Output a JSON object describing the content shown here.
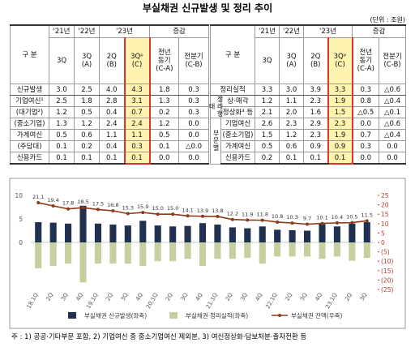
{
  "title": "부실채권 신규발생 및 정리 추이",
  "unit": "(단위 : 조원)",
  "left_table": {
    "corner": "구  분",
    "years": [
      "'21년",
      "'22년",
      "'23년"
    ],
    "change": "증감",
    "columns": [
      [
        "3Q"
      ],
      [
        "3Q",
        "(A)"
      ],
      [
        "2Q",
        "(B)"
      ],
      [
        "3Qᵖ",
        "(C)"
      ],
      [
        "전년",
        "동기",
        "(C-A)"
      ],
      [
        "전분기",
        "(C-B)"
      ]
    ],
    "rows": [
      [
        "신규발생",
        "3.0",
        "2.5",
        "4.0",
        "4.3",
        "1.8",
        "0.3"
      ],
      [
        "기업여신¹",
        "2.5",
        "1.8",
        "2.8",
        "3.1",
        "1.3",
        "0.3"
      ],
      [
        "(대기업²)",
        "1.2",
        "0.5",
        "0.4",
        "0.7",
        "0.2",
        "0.3"
      ],
      [
        "(중소기업)",
        "1.3",
        "1.2",
        "2.4",
        "2.4",
        "1.2",
        "0.0"
      ],
      [
        "가계여신",
        "0.5",
        "0.6",
        "1.1",
        "1.1",
        "0.5",
        "0.0"
      ],
      [
        "(주담대)",
        "0.1",
        "0.2",
        "0.4",
        "0.3",
        "0.1",
        "△0.0"
      ],
      [
        "신용카드",
        "0.1",
        "0.1",
        "0.1",
        "0.1",
        "0.0",
        "0.0"
      ]
    ]
  },
  "right_table": {
    "corner": "구  분",
    "years": [
      "'21년",
      "'22년",
      "'23년"
    ],
    "change": "증감",
    "columns": [
      [
        "3Q"
      ],
      [
        "3Q",
        "(A)"
      ],
      [
        "2Q",
        "(B)"
      ],
      [
        "3Qᵖ",
        "(C)"
      ],
      [
        "전년",
        "동기",
        "(C-A)"
      ],
      [
        "전분기",
        "(C-B)"
      ]
    ],
    "total": [
      "정리실적",
      "3.3",
      "3.0",
      "3.9",
      "3.3",
      "0.3",
      "△0.6"
    ],
    "groups": [
      {
        "label": "정리형태",
        "rows": [
          [
            "상·매각",
            "1.2",
            "1.1",
            "2.3",
            "1.9",
            "0.8",
            "△0.4"
          ],
          [
            "정상화³ 등",
            "2.1",
            "2.0",
            "1.6",
            "1.5",
            "△0.5",
            "△0.1"
          ]
        ]
      },
      {
        "label": "부문별",
        "rows": [
          [
            "기업여신",
            "2.6",
            "2.3",
            "2.9",
            "2.3",
            "0.0",
            "△0.6"
          ],
          [
            "(중소기업)",
            "1.5",
            "1.2",
            "2.3",
            "1.9",
            "0.7",
            "△0.4"
          ],
          [
            "가계여신",
            "0.5",
            "0.6",
            "0.9",
            "0.9",
            "0.3",
            "0.0"
          ],
          [
            "신용카드",
            "0.2",
            "0.1",
            "0.1",
            "0.1",
            "0.0",
            "0.0"
          ]
        ]
      }
    ]
  },
  "chart_data": {
    "type": "bar",
    "categories": [
      "18.1Q",
      "2Q",
      "3Q",
      "4Q",
      "19.1Q",
      "2Q",
      "3Q",
      "4Q",
      "20.1Q",
      "2Q",
      "3Q",
      "4Q",
      "21.1Q",
      "2Q",
      "3Q",
      "4Q",
      "22.1Q",
      "2Q",
      "3Q",
      "4Q",
      "23.1Q",
      "2Q",
      "3Q"
    ],
    "ylim": [
      -10,
      10
    ],
    "yticks": [
      10,
      5,
      0
    ],
    "y2lim": [
      -25,
      25
    ],
    "y2ticks": [
      25,
      20,
      15,
      10,
      5,
      0,
      {
        "value": -5,
        "label": "(5)"
      },
      {
        "value": -10,
        "label": "(10)"
      },
      {
        "value": -15,
        "label": "(15)"
      },
      {
        "value": -20,
        "label": "(20)"
      },
      {
        "value": -25,
        "label": "(25)"
      }
    ],
    "y2color": "#c0392b",
    "series": [
      {
        "name": "부실채권 신규발생(좌축)",
        "type": "bar",
        "color": "#1f3050",
        "values": [
          4.3,
          4.2,
          4.0,
          7.8,
          4.0,
          3.8,
          3.6,
          4.6,
          3.6,
          3.4,
          3.5,
          4.1,
          3.8,
          3.2,
          3.0,
          3.4,
          2.7,
          2.6,
          2.5,
          3.9,
          3.4,
          4.0,
          4.3
        ]
      },
      {
        "name": "부실채권 정리실적(좌축)",
        "type": "bar",
        "color": "#c6cf9f",
        "values": [
          -5.5,
          -5.0,
          -4.5,
          -8.5,
          -4.5,
          -4.5,
          -4.5,
          -5.0,
          -4.0,
          -4.0,
          -3.5,
          -5.0,
          -3.5,
          -3.5,
          -3.3,
          -4.5,
          -3.0,
          -3.0,
          -3.0,
          -3.5,
          -3.0,
          -3.9,
          -3.3
        ]
      },
      {
        "name": "부실채권 잔액(우축)",
        "type": "line",
        "axis": "y2",
        "color": "#8b3a1a",
        "values": [
          21.1,
          19.4,
          17.8,
          18.5,
          17.5,
          16.8,
          15.3,
          15.9,
          15.0,
          15.0,
          14.1,
          13.9,
          13.8,
          12.2,
          11.9,
          11.8,
          10.8,
          10.3,
          9.7,
          10.1,
          10.4,
          10.5,
          11.5
        ],
        "value_labels": [
          "21.1",
          "19.4",
          "17.8",
          "18.5",
          "17.5",
          "16.8",
          "15.3",
          "15.9",
          "15.0",
          "15.0",
          "14.1",
          "13.9",
          "13.8",
          "12.2",
          "11.9",
          "11.8",
          "10.8",
          "10.3",
          "9.7",
          "10.1",
          "10.4",
          "10.5",
          "11.5"
        ]
      }
    ]
  },
  "footnote": "주 : 1) 공공·기타부문 포함, 2) 기업여신 중 중소기업여신 제외분, 3) 여신정상화·담보처분·출자전환 등"
}
